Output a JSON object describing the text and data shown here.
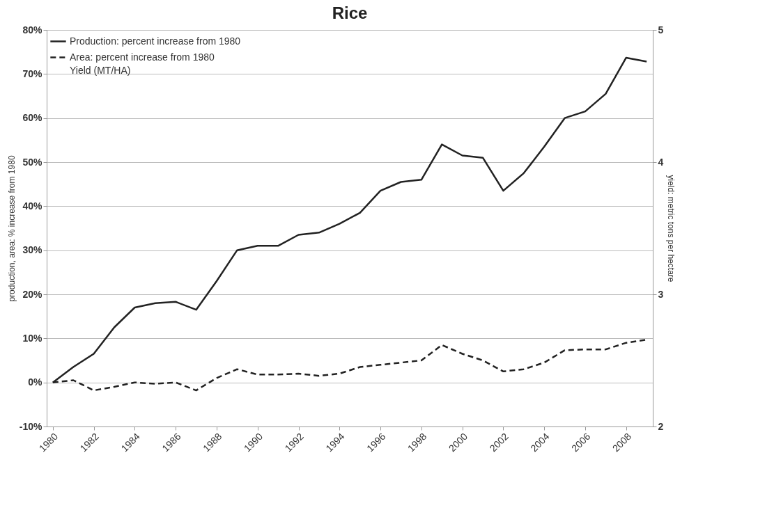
{
  "chart_data": {
    "type": "line",
    "title": "Rice",
    "ylabel": "production, area: % increase from 1980",
    "y2label": "yield: metric tons per hectare",
    "x": [
      1980,
      1981,
      1982,
      1983,
      1984,
      1985,
      1986,
      1987,
      1988,
      1989,
      1990,
      1991,
      1992,
      1993,
      1994,
      1995,
      1996,
      1997,
      1998,
      1999,
      2000,
      2001,
      2002,
      2003,
      2004,
      2005,
      2006,
      2007,
      2008,
      2009
    ],
    "series": [
      {
        "name": "Production: percent increase from 1980",
        "color": "#222222",
        "line_style": "solid",
        "values": [
          0,
          3.5,
          6.5,
          12.5,
          17,
          18,
          18.3,
          16.5,
          23,
          30,
          31,
          31,
          33.5,
          34,
          36,
          38.5,
          43.5,
          45.5,
          46,
          54,
          51.5,
          51,
          43.5,
          47.5,
          53.5,
          60,
          61.5,
          65.5,
          73.7,
          72.8
        ]
      },
      {
        "name": "Area: percent increase from 1980",
        "color": "#222222",
        "line_style": "dashed",
        "values": [
          0,
          0.5,
          -1.8,
          -1,
          0,
          -0.3,
          0,
          -1.8,
          1,
          3,
          1.8,
          1.8,
          2,
          1.5,
          2,
          3.5,
          4,
          4.5,
          5,
          8.5,
          6.5,
          5,
          2.5,
          3,
          4.5,
          7.3,
          7.5,
          7.5,
          9,
          9.7
        ]
      }
    ],
    "annotations": [
      "Yield (MT/HA)"
    ],
    "xlim": [
      1979.7,
      2009.3
    ],
    "xticks": [
      1980,
      1982,
      1984,
      1986,
      1988,
      1990,
      1992,
      1994,
      1996,
      1998,
      2000,
      2002,
      2004,
      2006,
      2008
    ],
    "ylim": [
      -10,
      80
    ],
    "yticks": [
      {
        "value": -10,
        "label": "-10%"
      },
      {
        "value": 0,
        "label": "0%"
      },
      {
        "value": 10,
        "label": "10%"
      },
      {
        "value": 20,
        "label": "20%"
      },
      {
        "value": 30,
        "label": "30%"
      },
      {
        "value": 40,
        "label": "40%"
      },
      {
        "value": 50,
        "label": "50%"
      },
      {
        "value": 60,
        "label": "60%"
      },
      {
        "value": 70,
        "label": "70%"
      },
      {
        "value": 80,
        "label": "80%"
      }
    ],
    "y2lim": [
      2,
      5
    ],
    "y2ticks": [
      2,
      3,
      4,
      5
    ],
    "grid": "y",
    "legend": "top left",
    "marker": "none"
  }
}
